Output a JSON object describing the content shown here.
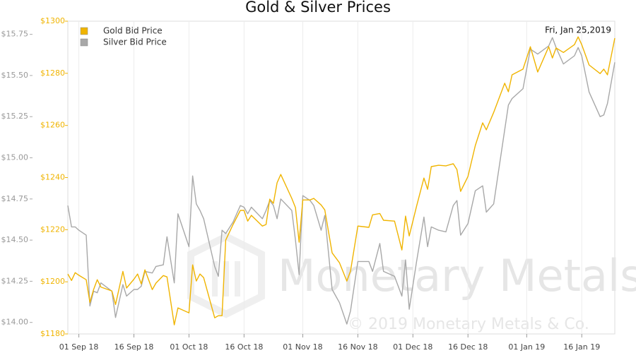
{
  "chart_data": {
    "type": "line",
    "title": "Gold & Silver Prices",
    "annotation": "Fri, Jan 25,2019",
    "watermark": "Monetary Metals",
    "copyright": "© 2019 Monetary Metals & Co.",
    "legend": "upper left",
    "grid": true,
    "x": [
      "2018-08-29",
      "2018-08-30",
      "2018-08-31",
      "2018-09-01",
      "2018-09-03",
      "2018-09-04",
      "2018-09-05",
      "2018-09-06",
      "2018-09-07",
      "2018-09-10",
      "2018-09-11",
      "2018-09-13",
      "2018-09-14",
      "2018-09-16",
      "2018-09-17",
      "2018-09-18",
      "2018-09-19",
      "2018-09-21",
      "2018-09-22",
      "2018-09-24",
      "2018-09-25",
      "2018-09-27",
      "2018-09-28",
      "2018-10-01",
      "2018-10-02",
      "2018-10-03",
      "2018-10-04",
      "2018-10-05",
      "2018-10-08",
      "2018-10-09",
      "2018-10-10",
      "2018-10-11",
      "2018-10-13",
      "2018-10-15",
      "2018-10-16",
      "2018-10-17",
      "2018-10-18",
      "2018-10-21",
      "2018-10-22",
      "2018-10-23",
      "2018-10-24",
      "2018-10-25",
      "2018-10-26",
      "2018-10-29",
      "2018-10-30",
      "2018-10-31",
      "2018-11-01",
      "2018-11-03",
      "2018-11-04",
      "2018-11-06",
      "2018-11-07",
      "2018-11-09",
      "2018-11-11",
      "2018-11-13",
      "2018-11-14",
      "2018-11-16",
      "2018-11-19",
      "2018-11-20",
      "2018-11-22",
      "2018-11-23",
      "2018-11-26",
      "2018-11-28",
      "2018-11-29",
      "2018-11-30",
      "2018-12-02",
      "2018-12-04",
      "2018-12-05",
      "2018-12-06",
      "2018-12-08",
      "2018-12-10",
      "2018-12-12",
      "2018-12-13",
      "2018-12-14",
      "2018-12-16",
      "2018-12-18",
      "2018-12-20",
      "2018-12-21",
      "2018-12-23",
      "2018-12-26",
      "2018-12-27",
      "2018-12-28",
      "2018-12-31",
      "2019-01-02",
      "2019-01-04",
      "2019-01-07",
      "2019-01-08",
      "2019-01-09",
      "2019-01-11",
      "2019-01-14",
      "2019-01-15",
      "2019-01-16",
      "2019-01-18",
      "2019-01-21",
      "2019-01-22",
      "2019-01-23",
      "2019-01-25"
    ],
    "xlim": [
      "2018-08-29",
      "2019-01-25"
    ],
    "xticks": [
      {
        "value": "2018-09-01",
        "label": "01 Sep 18"
      },
      {
        "value": "2018-09-16",
        "label": "16 Sep 18"
      },
      {
        "value": "2018-10-01",
        "label": "01 Oct 18"
      },
      {
        "value": "2018-10-16",
        "label": "16 Oct 18"
      },
      {
        "value": "2018-11-01",
        "label": "01 Nov 18"
      },
      {
        "value": "2018-11-16",
        "label": "16 Nov 18"
      },
      {
        "value": "2018-12-01",
        "label": "01 Dec 18"
      },
      {
        "value": "2018-12-16",
        "label": "16 Dec 18"
      },
      {
        "value": "2019-01-01",
        "label": "01 Jan 19"
      },
      {
        "value": "2019-01-16",
        "label": "16 Jan 19"
      }
    ],
    "ylim": [
      1180,
      1300
    ],
    "yticks": [
      {
        "value": 1180,
        "label": "$1180"
      },
      {
        "value": 1200,
        "label": "$1200"
      },
      {
        "value": 1220,
        "label": "$1220"
      },
      {
        "value": 1240,
        "label": "$1240"
      },
      {
        "value": 1260,
        "label": "$1260"
      },
      {
        "value": 1280,
        "label": "$1280"
      },
      {
        "value": 1300,
        "label": "$1300"
      }
    ],
    "y2lim": [
      13.93,
      15.83
    ],
    "y2ticks": [
      {
        "value": 14,
        "label": "$14.00"
      },
      {
        "value": 14.25,
        "label": "$14.25"
      },
      {
        "value": 14.5,
        "label": "$14.50"
      },
      {
        "value": 14.75,
        "label": "$14.75"
      },
      {
        "value": 15,
        "label": "$15.00"
      },
      {
        "value": 15.25,
        "label": "$15.25"
      },
      {
        "value": 15.5,
        "label": "$15.50"
      },
      {
        "value": 15.75,
        "label": "$15.75"
      }
    ],
    "series": [
      {
        "name": "Gold Bid Price",
        "color": "#f0b400",
        "axis": "y",
        "values": [
          1203.0,
          1200.5,
          1203.5,
          1202.5,
          1200.8,
          1192.1,
          1197.0,
          1200.8,
          1198.0,
          1196.5,
          1191.3,
          1204.0,
          1197.6,
          1201.0,
          1203.0,
          1199.2,
          1204.6,
          1197.0,
          1199.5,
          1202.4,
          1201.9,
          1183.5,
          1190.0,
          1188.1,
          1206.5,
          1200.3,
          1203.0,
          1201.6,
          1186.2,
          1187.0,
          1187.0,
          1216.0,
          1222.0,
          1227.4,
          1227.4,
          1223.3,
          1225.5,
          1221.4,
          1222.0,
          1231.7,
          1230.1,
          1238.0,
          1241.2,
          1232.0,
          1228.5,
          1215.2,
          1231.4,
          1231.4,
          1232.0,
          1229.5,
          1227.6,
          1211.1,
          1207.3,
          1200.3,
          1204.1,
          1221.4,
          1220.9,
          1225.7,
          1226.2,
          1223.6,
          1223.3,
          1212.2,
          1225.2,
          1217.6,
          1229.0,
          1239.8,
          1235.5,
          1244.2,
          1244.7,
          1244.5,
          1245.3,
          1243.1,
          1234.7,
          1240.4,
          1252.3,
          1261.0,
          1258.3,
          1265.0,
          1276.2,
          1272.9,
          1279.4,
          1281.6,
          1290.2,
          1280.5,
          1290.2,
          1285.9,
          1289.7,
          1288.0,
          1291.0,
          1294.0,
          1291.0,
          1283.2,
          1279.9,
          1281.6,
          1279.4,
          1293.5
        ]
      },
      {
        "name": "Silver Bid Price",
        "color": "#a8a8a8",
        "axis": "y2",
        "values": [
          14.71,
          14.58,
          14.58,
          14.56,
          14.53,
          14.1,
          14.19,
          14.18,
          14.24,
          14.19,
          14.03,
          14.23,
          14.16,
          14.2,
          14.2,
          14.22,
          14.31,
          14.3,
          14.34,
          14.35,
          14.52,
          14.24,
          14.66,
          14.46,
          14.89,
          14.72,
          14.68,
          14.63,
          14.34,
          14.28,
          14.56,
          14.54,
          14.61,
          14.71,
          14.7,
          14.66,
          14.7,
          14.63,
          14.68,
          14.74,
          14.71,
          14.63,
          14.75,
          14.68,
          14.5,
          14.29,
          14.77,
          14.74,
          14.71,
          14.56,
          14.65,
          14.2,
          14.12,
          13.99,
          14.07,
          14.37,
          14.37,
          14.31,
          14.48,
          14.31,
          14.28,
          14.16,
          14.38,
          14.08,
          14.37,
          14.64,
          14.46,
          14.58,
          14.56,
          14.55,
          14.71,
          14.74,
          14.53,
          14.6,
          14.8,
          14.83,
          14.67,
          14.72,
          15.17,
          15.32,
          15.36,
          15.42,
          15.66,
          15.63,
          15.68,
          15.73,
          15.67,
          15.57,
          15.62,
          15.67,
          15.62,
          15.4,
          15.25,
          15.26,
          15.33,
          15.58
        ]
      }
    ]
  }
}
